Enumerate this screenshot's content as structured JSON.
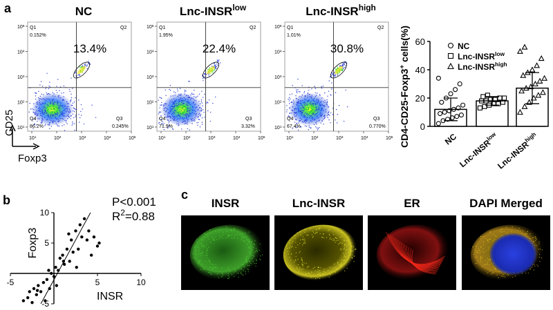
{
  "panel_labels": [
    "a",
    "b",
    "c"
  ],
  "flow_axes": {
    "tick_base": "10",
    "ticks": [
      1,
      2,
      3,
      4,
      5
    ],
    "xlabel": "Foxp3",
    "ylabel": "CD25"
  },
  "flow_plots": [
    {
      "title": "NC",
      "percent": "13.4%",
      "q1": "Q1",
      "q1_pct": "0.152%",
      "q2": "Q2",
      "q3": "Q3",
      "q3_pct": "0.245%",
      "q4": "Q4",
      "q4_pct": "86.2%"
    },
    {
      "title": "Lnc-INSR",
      "title_sup": "low",
      "percent": "22.4%",
      "q1": "Q1",
      "q1_pct": "1.95%",
      "q2": "Q2",
      "q3": "Q3",
      "q3_pct": "3.32%",
      "q4": "Q4",
      "q4_pct": "71.9%"
    },
    {
      "title": "Lnc-INSR",
      "title_sup": "high",
      "percent": "30.8%",
      "q1": "Q1",
      "q1_pct": "1.01%",
      "q2": "Q2",
      "q3": "Q3",
      "q3_pct": "0.770%",
      "q4": "Q4",
      "q4_pct": "67.4%"
    }
  ],
  "chart_data": [
    {
      "type": "bar",
      "ylabel": "CD4-CD25-Foxp3",
      "ylabel_sup": "+",
      "ylabel_suffix": " cells(%)",
      "ylim": [
        0,
        60
      ],
      "yticks": [
        0,
        20,
        40,
        60
      ],
      "series": [
        {
          "name": "NC",
          "marker": "circle",
          "value": 12,
          "error": 8,
          "points": [
            2,
            4,
            5,
            6,
            7,
            8,
            9,
            10,
            11,
            12,
            13,
            15,
            17,
            20,
            23,
            26,
            30,
            34
          ]
        },
        {
          "name": "Lnc-INSR",
          "name_sup": "low",
          "marker": "square",
          "value": 18,
          "error": 3,
          "points": [
            13,
            14,
            15,
            16,
            16,
            17,
            18,
            18,
            19,
            19,
            20,
            20,
            21,
            22
          ]
        },
        {
          "name": "Lnc-INSR",
          "name_sup": "high",
          "marker": "triangle",
          "value": 27,
          "error": 11,
          "points": [
            10,
            14,
            17,
            20,
            22,
            24,
            25,
            27,
            28,
            30,
            32,
            34,
            36,
            38,
            40,
            43,
            48,
            53,
            56
          ]
        }
      ]
    },
    {
      "type": "scatter",
      "xlabel": "INSR",
      "ylabel": "Foxp3",
      "annotation_p": "P<0.001",
      "annotation_r": "R",
      "annotation_r_sup": "2",
      "annotation_r_value": "=0.88",
      "xlim": [
        -5,
        10
      ],
      "ylim": [
        -5,
        10
      ],
      "xticks": [
        -5,
        5,
        10
      ],
      "yticks": [
        -5,
        5,
        10
      ],
      "x": [
        -3.5,
        -3,
        -2.8,
        -2.5,
        -2.3,
        -2,
        -1.8,
        -1.5,
        -1.2,
        -1,
        -0.8,
        -0.5,
        -0.3,
        0,
        0.2,
        0.5,
        0.7,
        1,
        1.2,
        1.5,
        1.8,
        2,
        2.2,
        2.5,
        2.8,
        3,
        3.2,
        3.5,
        3.8,
        4,
        4.3,
        4.6,
        5,
        5.2,
        0.3,
        1.1,
        2.6,
        -1.9,
        -0.6,
        1.7
      ],
      "y": [
        -4.5,
        -4,
        -3,
        -4.8,
        -2.5,
        -3.5,
        -2,
        -3,
        -1.5,
        -4.5,
        -1,
        -2.5,
        0,
        -0.5,
        1,
        0.5,
        2.5,
        3,
        1.5,
        4,
        2,
        5.5,
        3.5,
        7,
        4,
        8,
        6,
        9,
        5.5,
        7,
        3,
        6,
        4.5,
        5,
        -2,
        2,
        1,
        -2.8,
        0.5,
        6.5
      ],
      "fit_line": {
        "x": [
          -1.5,
          4.2
        ],
        "y": [
          -5,
          10
        ]
      }
    }
  ],
  "images": [
    {
      "title": "INSR",
      "stain": "green"
    },
    {
      "title": "Lnc-INSR",
      "stain": "yellow"
    },
    {
      "title": "ER",
      "stain": "red"
    },
    {
      "title": "DAPI Merged",
      "stain": "merged"
    }
  ]
}
